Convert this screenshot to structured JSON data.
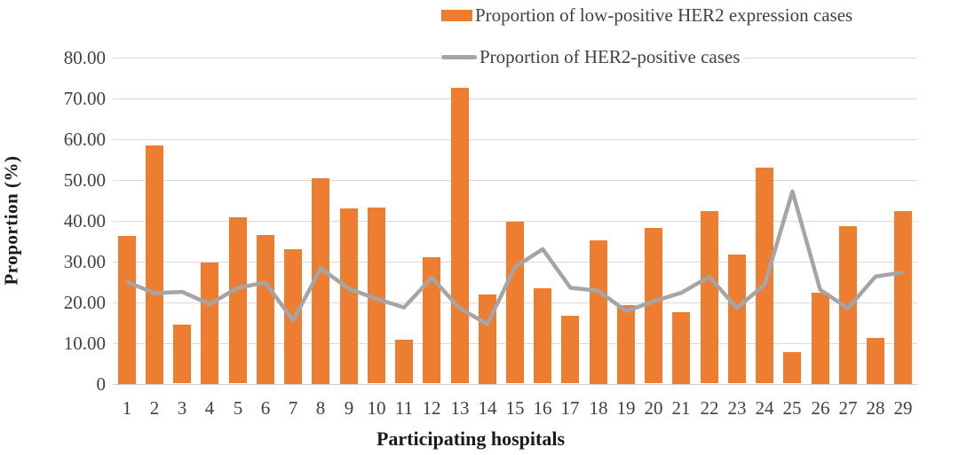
{
  "chart_data": {
    "type": "bar",
    "subtype": "combo-bar-line",
    "title": "",
    "categories": [
      "1",
      "2",
      "3",
      "4",
      "5",
      "6",
      "7",
      "8",
      "9",
      "10",
      "11",
      "12",
      "13",
      "14",
      "15",
      "16",
      "17",
      "18",
      "19",
      "20",
      "21",
      "22",
      "23",
      "24",
      "25",
      "26",
      "27",
      "28",
      "29"
    ],
    "series": [
      {
        "name": "Proportion of low-positive HER2 expression cases",
        "type": "bar",
        "color": "#ED7D31",
        "values": [
          36.3,
          58.5,
          14.4,
          29.8,
          40.8,
          36.5,
          33.0,
          50.5,
          43.0,
          43.2,
          10.7,
          31.0,
          72.5,
          21.9,
          39.7,
          23.3,
          16.6,
          35.2,
          19.3,
          38.2,
          17.6,
          42.3,
          31.6,
          53.0,
          7.7,
          22.4,
          38.7,
          11.3,
          42.4
        ]
      },
      {
        "name": "Proportion of HER2-positive cases",
        "type": "line",
        "color": "#A5A5A5",
        "values": [
          25.0,
          22.2,
          22.5,
          19.5,
          23.5,
          24.8,
          15.5,
          28.3,
          23.3,
          20.8,
          18.7,
          26.0,
          18.5,
          14.6,
          28.6,
          33.0,
          23.5,
          22.8,
          17.8,
          20.2,
          22.3,
          26.2,
          18.6,
          24.3,
          47.2,
          23.0,
          18.5,
          26.3,
          27.3
        ]
      }
    ],
    "xlabel": "Participating hospitals",
    "ylabel": "Proportion (%)",
    "ylim": [
      0,
      80
    ],
    "ytick_step": 10,
    "ytick_labels": [
      "0",
      "10.00",
      "20.00",
      "30.00",
      "40.00",
      "50.00",
      "60.00",
      "70.00",
      "80.00"
    ],
    "grid": true,
    "legend_position": "top-right",
    "gridline_color": "#D9D9D9",
    "text_color": "#404040"
  }
}
